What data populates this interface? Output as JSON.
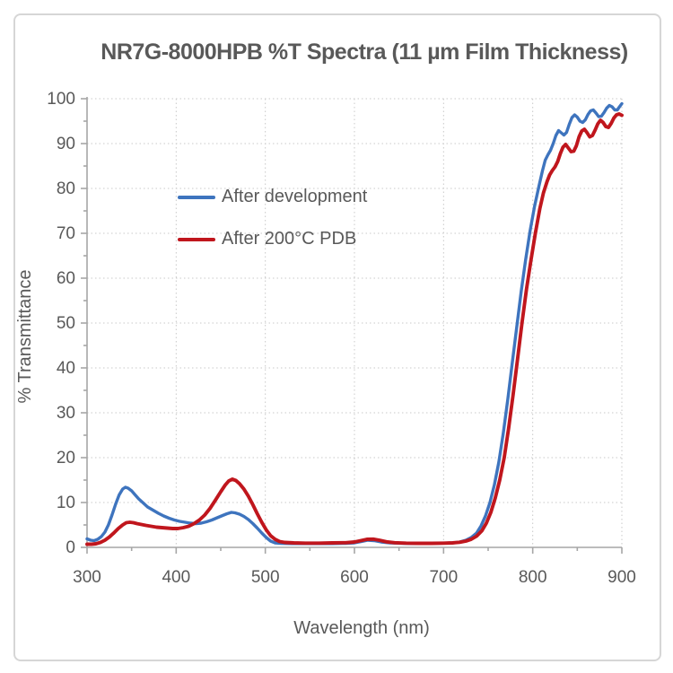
{
  "title": "NR7G-8000HPB %T Spectra (11 µm Film Thickness)",
  "chart_data": {
    "type": "line",
    "title": "NR7G-8000HPB %T Spectra (11 µm Film Thickness)",
    "xlabel": "Wavelength (nm)",
    "ylabel": "% Transmittance",
    "xlim": [
      300,
      900
    ],
    "ylim": [
      0,
      100
    ],
    "x_major_ticks": [
      300,
      400,
      500,
      600,
      700,
      800,
      900
    ],
    "x_minor_step": 50,
    "y_major_ticks": [
      0,
      10,
      20,
      30,
      40,
      50,
      60,
      70,
      80,
      90,
      100
    ],
    "y_minor_step": 5,
    "grid": "dotted gray grid at every major tick; legend floating upper-left inside plot",
    "legend_position": "upper-left-inside",
    "colors": {
      "after_development": "#3e74be",
      "after_pdb": "#c0161d",
      "grid": "#c9c9c9",
      "axis": "#a6a6a6",
      "text": "#595959"
    },
    "series": [
      {
        "name": "After development",
        "color": "#3e74be",
        "points": [
          [
            300,
            1.9
          ],
          [
            304,
            1.6
          ],
          [
            308,
            1.5
          ],
          [
            312,
            1.8
          ],
          [
            316,
            2.4
          ],
          [
            320,
            3.4
          ],
          [
            324,
            5.0
          ],
          [
            328,
            7.2
          ],
          [
            332,
            9.6
          ],
          [
            336,
            11.7
          ],
          [
            340,
            13.0
          ],
          [
            343,
            13.4
          ],
          [
            346,
            13.2
          ],
          [
            350,
            12.6
          ],
          [
            354,
            11.7
          ],
          [
            358,
            10.8
          ],
          [
            363,
            9.9
          ],
          [
            368,
            9.0
          ],
          [
            374,
            8.3
          ],
          [
            380,
            7.6
          ],
          [
            386,
            7.0
          ],
          [
            392,
            6.5
          ],
          [
            398,
            6.1
          ],
          [
            404,
            5.8
          ],
          [
            410,
            5.6
          ],
          [
            416,
            5.4
          ],
          [
            422,
            5.3
          ],
          [
            428,
            5.4
          ],
          [
            434,
            5.7
          ],
          [
            440,
            6.1
          ],
          [
            446,
            6.6
          ],
          [
            452,
            7.1
          ],
          [
            457,
            7.5
          ],
          [
            462,
            7.8
          ],
          [
            466,
            7.7
          ],
          [
            471,
            7.4
          ],
          [
            476,
            6.9
          ],
          [
            481,
            6.2
          ],
          [
            486,
            5.3
          ],
          [
            491,
            4.3
          ],
          [
            496,
            3.2
          ],
          [
            501,
            2.2
          ],
          [
            506,
            1.4
          ],
          [
            511,
            1.0
          ],
          [
            518,
            0.9
          ],
          [
            530,
            0.85
          ],
          [
            545,
            0.85
          ],
          [
            560,
            0.85
          ],
          [
            575,
            0.85
          ],
          [
            590,
            0.9
          ],
          [
            600,
            1.0
          ],
          [
            608,
            1.3
          ],
          [
            615,
            1.6
          ],
          [
            622,
            1.5
          ],
          [
            630,
            1.2
          ],
          [
            640,
            1.0
          ],
          [
            655,
            0.9
          ],
          [
            670,
            0.85
          ],
          [
            685,
            0.9
          ],
          [
            700,
            0.95
          ],
          [
            710,
            1.0
          ],
          [
            718,
            1.2
          ],
          [
            725,
            1.6
          ],
          [
            731,
            2.2
          ],
          [
            737,
            3.2
          ],
          [
            742,
            4.8
          ],
          [
            747,
            7.0
          ],
          [
            752,
            10.0
          ],
          [
            757,
            14.0
          ],
          [
            762,
            19.0
          ],
          [
            767,
            25.5
          ],
          [
            772,
            33.0
          ],
          [
            777,
            41.0
          ],
          [
            782,
            49.0
          ],
          [
            787,
            57.0
          ],
          [
            792,
            64.0
          ],
          [
            797,
            70.5
          ],
          [
            802,
            76.0
          ],
          [
            807,
            80.5
          ],
          [
            811,
            84.0
          ],
          [
            814,
            86.3
          ],
          [
            817,
            87.5
          ],
          [
            820,
            88.5
          ],
          [
            823,
            90.0
          ],
          [
            826,
            91.8
          ],
          [
            829,
            92.9
          ],
          [
            832,
            92.4
          ],
          [
            835,
            91.9
          ],
          [
            838,
            92.5
          ],
          [
            841,
            94.3
          ],
          [
            844,
            95.8
          ],
          [
            847,
            96.4
          ],
          [
            850,
            95.9
          ],
          [
            853,
            95.0
          ],
          [
            856,
            94.7
          ],
          [
            859,
            95.3
          ],
          [
            862,
            96.5
          ],
          [
            865,
            97.3
          ],
          [
            868,
            97.5
          ],
          [
            871,
            96.8
          ],
          [
            874,
            96.0
          ],
          [
            877,
            96.1
          ],
          [
            880,
            96.9
          ],
          [
            883,
            97.9
          ],
          [
            886,
            98.5
          ],
          [
            889,
            98.2
          ],
          [
            892,
            97.5
          ],
          [
            895,
            97.5
          ],
          [
            897,
            98.1
          ],
          [
            900,
            98.9
          ]
        ]
      },
      {
        "name": "After 200°C PDB",
        "color": "#c0161d",
        "points": [
          [
            300,
            0.7
          ],
          [
            305,
            0.7
          ],
          [
            310,
            0.8
          ],
          [
            315,
            1.1
          ],
          [
            320,
            1.6
          ],
          [
            325,
            2.3
          ],
          [
            330,
            3.2
          ],
          [
            335,
            4.2
          ],
          [
            340,
            5.0
          ],
          [
            344,
            5.5
          ],
          [
            348,
            5.6
          ],
          [
            352,
            5.5
          ],
          [
            356,
            5.3
          ],
          [
            361,
            5.1
          ],
          [
            366,
            4.9
          ],
          [
            372,
            4.7
          ],
          [
            378,
            4.5
          ],
          [
            384,
            4.4
          ],
          [
            390,
            4.3
          ],
          [
            396,
            4.2
          ],
          [
            402,
            4.2
          ],
          [
            408,
            4.4
          ],
          [
            414,
            4.7
          ],
          [
            420,
            5.3
          ],
          [
            426,
            6.1
          ],
          [
            432,
            7.2
          ],
          [
            438,
            8.7
          ],
          [
            444,
            10.5
          ],
          [
            450,
            12.4
          ],
          [
            455,
            13.9
          ],
          [
            459,
            14.8
          ],
          [
            463,
            15.2
          ],
          [
            467,
            14.9
          ],
          [
            471,
            14.2
          ],
          [
            476,
            13.0
          ],
          [
            481,
            11.4
          ],
          [
            486,
            9.5
          ],
          [
            491,
            7.5
          ],
          [
            496,
            5.6
          ],
          [
            501,
            3.9
          ],
          [
            506,
            2.6
          ],
          [
            511,
            1.8
          ],
          [
            516,
            1.3
          ],
          [
            522,
            1.1
          ],
          [
            532,
            1.0
          ],
          [
            545,
            0.95
          ],
          [
            560,
            0.95
          ],
          [
            575,
            1.0
          ],
          [
            590,
            1.05
          ],
          [
            600,
            1.2
          ],
          [
            607,
            1.5
          ],
          [
            614,
            1.8
          ],
          [
            621,
            1.85
          ],
          [
            628,
            1.6
          ],
          [
            636,
            1.25
          ],
          [
            645,
            1.05
          ],
          [
            658,
            0.95
          ],
          [
            672,
            0.9
          ],
          [
            686,
            0.9
          ],
          [
            700,
            0.95
          ],
          [
            710,
            1.0
          ],
          [
            718,
            1.15
          ],
          [
            725,
            1.4
          ],
          [
            731,
            1.8
          ],
          [
            737,
            2.5
          ],
          [
            743,
            3.7
          ],
          [
            748,
            5.4
          ],
          [
            753,
            7.8
          ],
          [
            758,
            11.0
          ],
          [
            763,
            15.0
          ],
          [
            768,
            20.0
          ],
          [
            773,
            26.5
          ],
          [
            778,
            34.0
          ],
          [
            783,
            42.0
          ],
          [
            788,
            50.0
          ],
          [
            793,
            57.5
          ],
          [
            798,
            64.0
          ],
          [
            803,
            70.0
          ],
          [
            808,
            75.5
          ],
          [
            812,
            79.0
          ],
          [
            816,
            81.5
          ],
          [
            819,
            83.0
          ],
          [
            822,
            84.0
          ],
          [
            825,
            84.8
          ],
          [
            828,
            86.0
          ],
          [
            831,
            87.8
          ],
          [
            834,
            89.2
          ],
          [
            837,
            89.8
          ],
          [
            840,
            89.0
          ],
          [
            843,
            88.2
          ],
          [
            846,
            88.3
          ],
          [
            849,
            89.5
          ],
          [
            852,
            91.5
          ],
          [
            855,
            92.8
          ],
          [
            858,
            93.2
          ],
          [
            861,
            92.4
          ],
          [
            864,
            91.5
          ],
          [
            867,
            91.8
          ],
          [
            870,
            93.0
          ],
          [
            873,
            94.4
          ],
          [
            876,
            95.2
          ],
          [
            879,
            94.7
          ],
          [
            882,
            93.8
          ],
          [
            885,
            93.6
          ],
          [
            888,
            94.5
          ],
          [
            891,
            95.7
          ],
          [
            894,
            96.4
          ],
          [
            897,
            96.6
          ],
          [
            900,
            96.3
          ]
        ]
      }
    ]
  }
}
